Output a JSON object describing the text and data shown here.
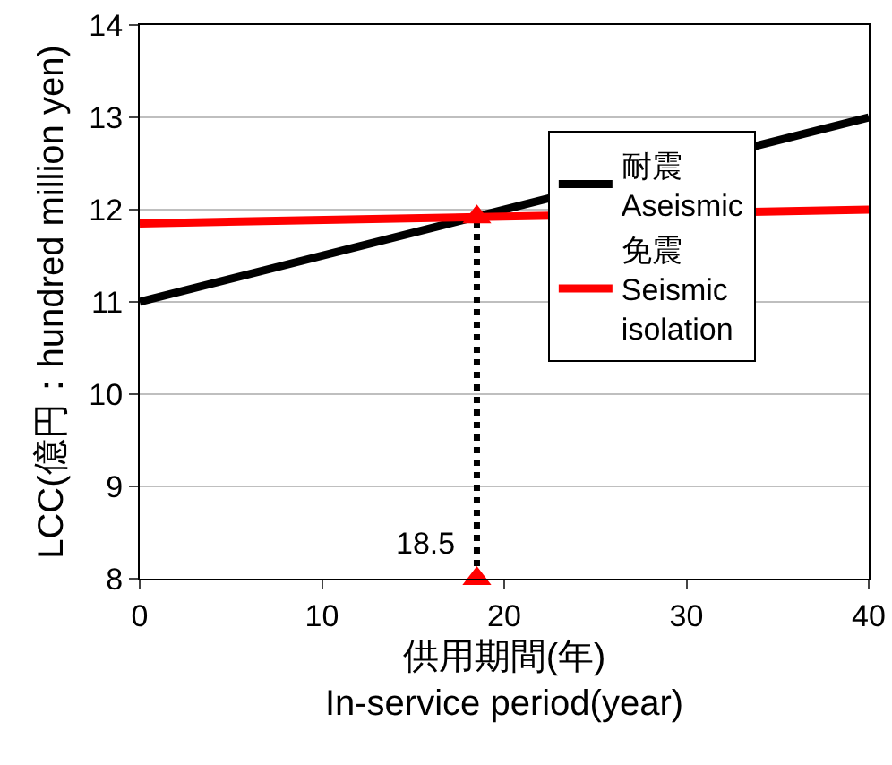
{
  "chart_data": {
    "type": "line",
    "xlabel": "供用期間(年)\nIn-service period(year)",
    "ylabel": "LCC(億円：hundred million yen)",
    "xlim": [
      0,
      40
    ],
    "xticks": [
      0,
      10,
      20,
      30,
      40
    ],
    "ylim": [
      8,
      14
    ],
    "yticks": [
      8,
      9,
      10,
      11,
      12,
      13,
      14
    ],
    "grid": "y",
    "legend": "right",
    "series": [
      {
        "name": "耐震\nAseismic",
        "color": "#000000",
        "x": [
          0,
          40
        ],
        "values": [
          11,
          13
        ],
        "marker": "none",
        "line_style": "solid"
      },
      {
        "name": "免震\nSeismic\nisolation",
        "color": "#ff0000",
        "x": [
          0,
          40
        ],
        "values": [
          11.85,
          12
        ],
        "marker": "none",
        "line_style": "solid"
      },
      {
        "type": "line",
        "color": "#000000",
        "x": [
          18.5,
          18.5
        ],
        "values": [
          8,
          11.92
        ],
        "marker": "none",
        "line_style": "dotted"
      },
      {
        "type": "scatter",
        "color": "#ff0000",
        "x": [
          18.5,
          18.5
        ],
        "values": [
          11.92,
          8
        ],
        "marker": "triangle"
      }
    ],
    "annotations": [
      {
        "text": "18.5",
        "x": 18.5,
        "y": 8
      }
    ]
  }
}
